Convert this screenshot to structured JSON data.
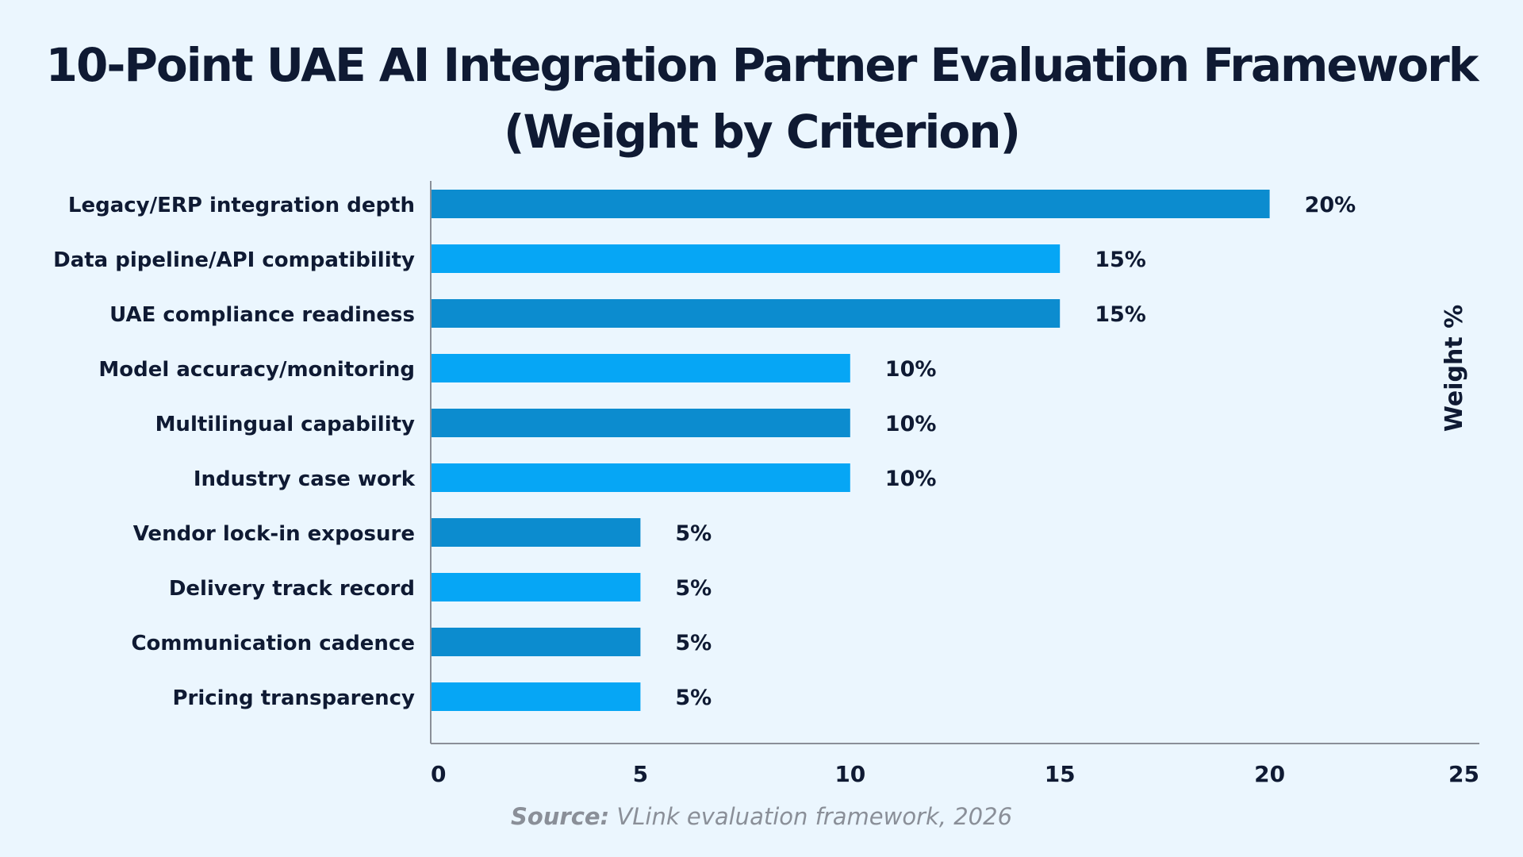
{
  "title_line1": "10-Point UAE AI Integration Partner Evaluation Framework",
  "title_line2": "(Weight by Criterion)",
  "source_label": "Source:",
  "source_text": "VLink evaluation framework, 2026",
  "colors": {
    "background": "#ebf6fe",
    "bar_dark": "#0c8ccf",
    "bar_light": "#06a6f5",
    "text": "#0f1a33",
    "source": "#8a8f98"
  },
  "chart_data": {
    "type": "bar",
    "orientation": "horizontal",
    "categories": [
      "Legacy/ERP integration depth",
      "Data pipeline/API compatibility",
      "UAE compliance readiness",
      "Model accuracy/monitoring",
      "Multilingual capability",
      "Industry case work",
      "Vendor lock-in exposure",
      "Delivery track record",
      "Communication cadence",
      "Pricing transparency"
    ],
    "values": [
      20,
      15,
      15,
      10,
      10,
      10,
      5,
      5,
      5,
      5
    ],
    "value_labels": [
      "20%",
      "15%",
      "15%",
      "10%",
      "10%",
      "10%",
      "5%",
      "5%",
      "5%",
      "5%"
    ],
    "xlim": [
      0,
      25
    ],
    "xticks": [
      "0",
      "5",
      "10",
      "15",
      "20",
      "25"
    ],
    "xtick_values": [
      0,
      5,
      10,
      15,
      20,
      25
    ],
    "ylabel": "Weight %",
    "grid": false,
    "legend": "none",
    "bar_colors_alternating": [
      "#0c8ccf",
      "#06a6f5"
    ]
  }
}
